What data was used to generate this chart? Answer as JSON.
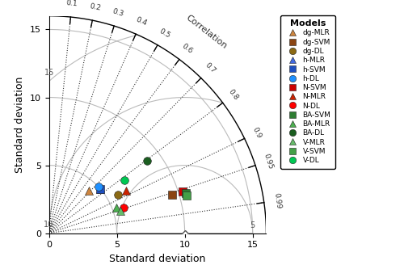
{
  "max_std": 16,
  "ref_std": 10,
  "correlation_values": [
    0.1,
    0.2,
    0.3,
    0.4,
    0.5,
    0.6,
    0.7,
    0.8,
    0.9,
    0.95,
    0.99
  ],
  "rmse_arcs": [
    5,
    10,
    15
  ],
  "models": {
    "dg-MLR": {
      "std": 4.3,
      "corr": 0.68,
      "color": "#CD853F",
      "marker": "^"
    },
    "dg-SVM": {
      "std": 9.5,
      "corr": 0.955,
      "color": "#8B4513",
      "marker": "s"
    },
    "dg-DL": {
      "std": 5.8,
      "corr": 0.875,
      "color": "#8B6914",
      "marker": "o"
    },
    "h-MLR": {
      "std": 5.0,
      "corr": 0.76,
      "color": "#4169E1",
      "marker": "^"
    },
    "h-SVM": {
      "std": 5.0,
      "corr": 0.76,
      "color": "#1E4FBF",
      "marker": "s"
    },
    "h-DL": {
      "std": 5.0,
      "corr": 0.73,
      "color": "#1E90FF",
      "marker": "o"
    },
    "N-SVM": {
      "std": 10.3,
      "corr": 0.955,
      "color": "#CC0000",
      "marker": "s"
    },
    "N-MLR": {
      "std": 6.5,
      "corr": 0.875,
      "color": "#CC2200",
      "marker": "^"
    },
    "N-DL": {
      "std": 5.8,
      "corr": 0.945,
      "color": "#FF0000",
      "marker": "o"
    },
    "BA-SVM": {
      "std": 10.5,
      "corr": 0.96,
      "color": "#2E7D32",
      "marker": "s"
    },
    "BA-MLR": {
      "std": 5.3,
      "corr": 0.935,
      "color": "#4CAF50",
      "marker": "^"
    },
    "BA-DL": {
      "std": 9.0,
      "corr": 0.805,
      "color": "#1B5E20",
      "marker": "o"
    },
    "V-MLR": {
      "std": 5.5,
      "corr": 0.955,
      "color": "#66BB6A",
      "marker": "^"
    },
    "V-SVM": {
      "std": 10.5,
      "corr": 0.965,
      "color": "#43A047",
      "marker": "s"
    },
    "V-DL": {
      "std": 6.8,
      "corr": 0.82,
      "color": "#00C853",
      "marker": "o"
    }
  },
  "legend_order": [
    "dg-MLR",
    "dg-SVM",
    "dg-DL",
    "h-MLR",
    "h-SVM",
    "h-DL",
    "N-SVM",
    "N-MLR",
    "N-DL",
    "BA-SVM",
    "BA-MLR",
    "BA-DL",
    "V-MLR",
    "V-SVM",
    "V-DL"
  ],
  "xlabel": "Standard deviation",
  "ylabel": "Standard deviation",
  "corr_label": "Correlation",
  "bg_color": "#FFFFFF"
}
